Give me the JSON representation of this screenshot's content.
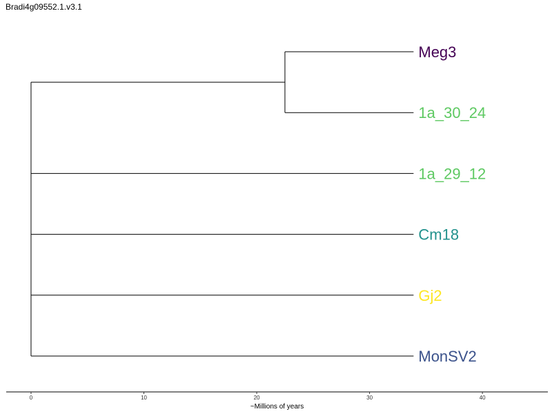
{
  "title": "Bradi4g09552.1.v3.1",
  "chart_data": {
    "type": "dendrogram",
    "xlabel": "~Millions of years",
    "xticks": [
      0,
      10,
      20,
      30,
      40
    ],
    "xlim": [
      -2.2,
      45.8
    ],
    "tips": [
      {
        "name": "Meg3",
        "color": "#440154"
      },
      {
        "name": "1a_30_24",
        "color": "#5ec962"
      },
      {
        "name": "1a_29_12",
        "color": "#5ec962"
      },
      {
        "name": "Cm18",
        "color": "#21918c"
      },
      {
        "name": "Gj2",
        "color": "#fde725"
      },
      {
        "name": "MonSV2",
        "color": "#3b528b"
      }
    ],
    "tip_age": 33.9,
    "internal_nodes": [
      {
        "x": 22.5,
        "children": [
          "Meg3",
          "1a_30_24"
        ]
      }
    ],
    "root": {
      "x": 0,
      "children": [
        "node0",
        "1a_29_12",
        "Cm18",
        "Gj2",
        "MonSV2"
      ]
    }
  }
}
